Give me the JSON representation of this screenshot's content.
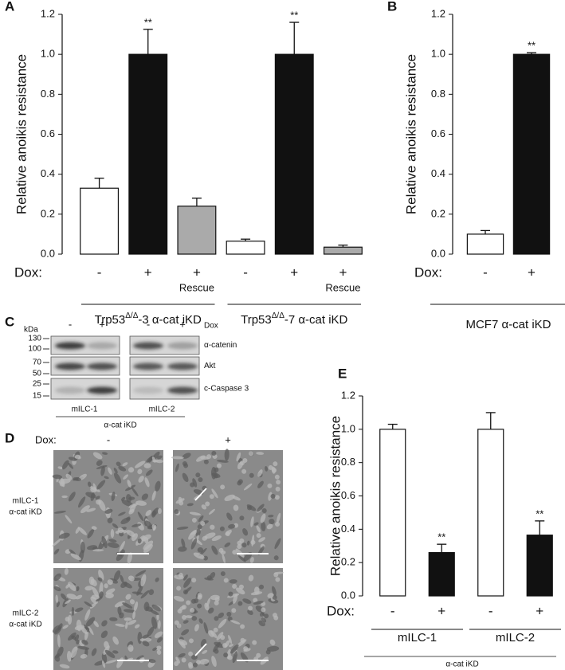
{
  "panel_letters": [
    "A",
    "B",
    "C",
    "D",
    "E"
  ],
  "chart_data": [
    {
      "type": "bar",
      "y_label": "Relative anoikis resistance",
      "x_label": "Dox:",
      "categories": [
        "-",
        "+",
        "+",
        "-",
        "+",
        "+"
      ],
      "sub_labels": [
        null,
        null,
        "Rescue",
        null,
        null,
        "Rescue"
      ],
      "values": [
        0.33,
        1.0,
        0.24,
        0.065,
        1.0,
        0.035
      ],
      "errors": [
        0.05,
        0.125,
        0.04,
        0.01,
        0.16,
        0.01
      ],
      "colors": [
        "#ffffff",
        "#111111",
        "#aaaaaa",
        "#ffffff",
        "#111111",
        "#aaaaaa"
      ],
      "significance": [
        null,
        "**",
        null,
        null,
        "**",
        null
      ],
      "groups": [
        {
          "name": "Trp53",
          "sup": "Δ/Δ",
          "rest": "-3 α-cat iKD"
        },
        {
          "name": "Trp53",
          "sup": "Δ/Δ",
          "rest": "-7 α-cat iKD"
        }
      ],
      "ylim": [
        0,
        1.2
      ],
      "yticks": [
        {
          "value": 0,
          "label": "0.0"
        },
        0.2,
        0.4,
        0.6,
        0.8,
        {
          "value": 1,
          "label": "1.0"
        },
        1.2
      ]
    },
    {
      "type": "bar",
      "y_label": "Relative anoikis resistance",
      "x_label": "Dox:",
      "categories": [
        "-",
        "+"
      ],
      "values": [
        0.1,
        1.0
      ],
      "errors": [
        0.018,
        0.008
      ],
      "colors": [
        "#ffffff",
        "#111111"
      ],
      "significance": [
        null,
        "**"
      ],
      "groups": [
        {
          "name": "MCF7 α-cat iKD"
        }
      ],
      "ylim": [
        0,
        1.2
      ],
      "yticks": [
        {
          "value": 0,
          "label": "0.0"
        },
        0.2,
        0.4,
        0.6,
        0.8,
        {
          "value": 1,
          "label": "1.0"
        },
        1.2
      ]
    },
    {
      "type": "bar",
      "y_label": "Relative anoikis resistance",
      "x_label": "Dox:",
      "categories": [
        "-",
        "+",
        "-",
        "+"
      ],
      "values": [
        1.0,
        0.26,
        1.0,
        0.365
      ],
      "errors": [
        0.03,
        0.05,
        0.1,
        0.085
      ],
      "colors": [
        "#ffffff",
        "#111111",
        "#ffffff",
        "#111111"
      ],
      "significance": [
        null,
        "**",
        null,
        "**"
      ],
      "groups": [
        {
          "name": "mILC-1"
        },
        {
          "name": "mILC-2"
        }
      ],
      "footer": "α-cat iKD",
      "ylim": [
        0,
        1.2
      ],
      "yticks": [
        {
          "value": 0,
          "label": "0.0"
        },
        0.2,
        0.4,
        0.6,
        0.8,
        {
          "value": 1,
          "label": "1.0"
        },
        1.2
      ]
    }
  ],
  "panel_c": {
    "unit": "kDa",
    "markers": [
      "130",
      "100",
      "70",
      "50",
      "25",
      "15"
    ],
    "lanes": [
      "-",
      "+",
      "-",
      "+"
    ],
    "dox": "Dox",
    "proteins": [
      "α-catenin",
      "Akt",
      "c-Caspase 3"
    ],
    "cell_lines": [
      "mILC-1",
      "mILC-2"
    ],
    "footer": "α-cat iKD"
  },
  "panel_d": {
    "dox": "Dox:",
    "columns": [
      "-",
      "+"
    ],
    "rows": [
      {
        "line": "mILC-1",
        "label": "α-cat iKD"
      },
      {
        "line": "mILC-2",
        "label": "α-cat iKD"
      }
    ]
  }
}
